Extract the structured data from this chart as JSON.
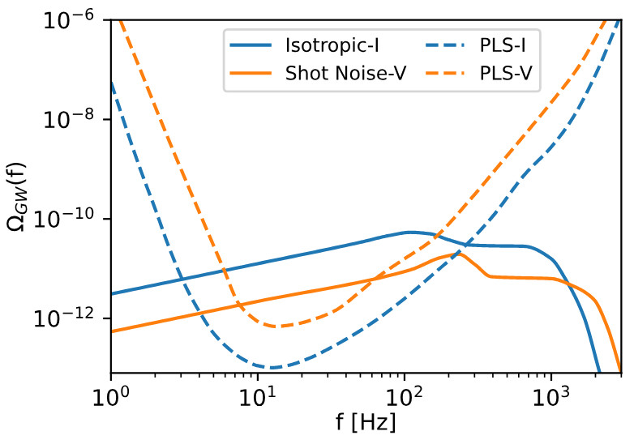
{
  "chart_data": {
    "type": "line",
    "xlabel": "f [Hz]",
    "ylabel": "Ω$_{GW}$(f)",
    "log": "xy",
    "xlim": [
      1,
      3000
    ],
    "ylim": [
      8e-14,
      1e-06
    ],
    "xticks": [
      {
        "value": 1,
        "label": "10$^{0}$"
      },
      {
        "value": 10,
        "label": "10$^{1}$"
      },
      {
        "value": 100,
        "label": "10$^{2}$"
      },
      {
        "value": 1000,
        "label": "10$^{3}$"
      }
    ],
    "yticks": [
      {
        "value": 1e-12,
        "label": "10$^{−12}$"
      },
      {
        "value": 1e-10,
        "label": "10$^{−10}$"
      },
      {
        "value": 1e-08,
        "label": "10$^{−8}$"
      },
      {
        "value": 1e-06,
        "label": "10$^{−6}$"
      }
    ],
    "grid": false,
    "legend": "top right",
    "marker": "none",
    "series": [
      {
        "name": "Isotropic-I",
        "color": "#1f77b4",
        "line_style": "solid",
        "x": [
          1,
          10,
          50,
          80,
          110,
          150,
          200,
          275,
          400,
          650,
          1000,
          1260,
          1660,
          2140
        ],
        "values": [
          3.09e-12,
          1.26e-11,
          3.39e-11,
          4.68e-11,
          5.37e-11,
          5e-11,
          3.8e-11,
          3e-11,
          2.88e-11,
          2.82e-11,
          1.58e-11,
          5.9e-12,
          1.12e-12,
          8e-14
        ]
      },
      {
        "name": "Shot Noise-V",
        "color": "#ff7f0e",
        "line_style": "solid",
        "x": [
          1,
          10,
          110,
          180,
          235,
          300,
          390,
          550,
          1000,
          1380,
          1950,
          2400,
          3000
        ],
        "values": [
          5.4e-13,
          2.2e-12,
          9.5e-12,
          1.7e-11,
          1.95e-11,
          1.23e-11,
          6.9e-12,
          6.6e-12,
          6.3e-12,
          4.6e-12,
          2.4e-12,
          6.9e-13,
          8e-14
        ]
      },
      {
        "name": "PLS-I",
        "color": "#1f77b4",
        "line_style": "dashed",
        "x": [
          1,
          1.26,
          1.585,
          2.0,
          2.51,
          3.16,
          3.98,
          5.01,
          6.31,
          7.94,
          10,
          12.6,
          15.8,
          22.4,
          31.6,
          56.2,
          100,
          158,
          263,
          398,
          661,
          1000,
          1380,
          2000,
          2880
        ],
        "values": [
          5.6e-08,
          7.1e-09,
          1e-09,
          1.6e-10,
          2.5e-11,
          5e-12,
          1.41e-12,
          5e-13,
          2.5e-13,
          1.51e-13,
          1.12e-13,
          1.02e-13,
          1.12e-13,
          1.58e-13,
          2.6e-13,
          7.1e-13,
          2.5e-12,
          7.9e-12,
          3e-11,
          1.12e-10,
          7.9e-10,
          2.8e-09,
          1e-08,
          7.9e-08,
          1e-06
        ]
      },
      {
        "name": "PLS-V",
        "color": "#ff7f0e",
        "line_style": "dashed",
        "x": [
          1.156,
          1.585,
          2.512,
          3.98,
          5.89,
          7.41,
          8.91,
          10.7,
          13.2,
          17.8,
          25.1,
          33.9,
          50.1,
          66.1,
          100,
          155,
          282,
          447,
          661,
          1000,
          1550,
          2340
        ],
        "values": [
          1e-06,
          1e-07,
          3.5e-09,
          1.41e-10,
          9.5e-12,
          2e-12,
          1.12e-12,
          7.9e-13,
          6.9e-13,
          7.6e-13,
          1e-12,
          1.45e-12,
          3.5e-12,
          6.9e-12,
          1.58e-11,
          3.8e-11,
          2.5e-10,
          1.26e-09,
          5e-09,
          2.2e-08,
          1.2e-07,
          1e-06
        ]
      }
    ]
  }
}
